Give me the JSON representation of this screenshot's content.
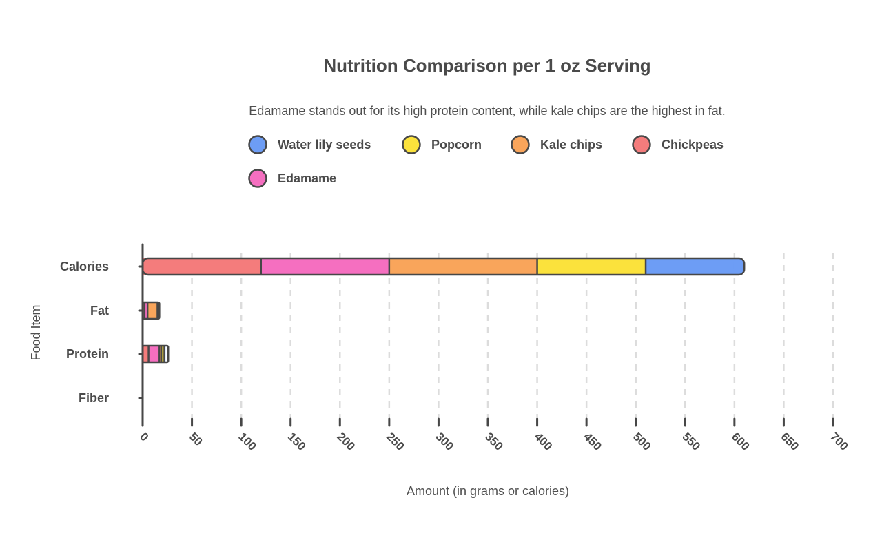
{
  "chart_data": {
    "type": "bar",
    "orientation": "horizontal",
    "stacked": true,
    "title": "Nutrition Comparison per 1 oz Serving",
    "subtitle": "Edamame stands out for its high protein content, while kale chips are the highest in fat.",
    "xlabel": "Amount (in grams or calories)",
    "ylabel": "Food Item",
    "xlim": [
      0,
      700
    ],
    "xticks": [
      0,
      50,
      100,
      150,
      200,
      250,
      300,
      350,
      400,
      450,
      500,
      550,
      600,
      650,
      700
    ],
    "grid": true,
    "legend_position": "top",
    "categories": [
      "Calories",
      "Fat",
      "Protein",
      "Fiber"
    ],
    "series": [
      {
        "name": "Chickpeas",
        "color": "#f47c7c",
        "values": [
          120,
          2,
          6,
          0
        ]
      },
      {
        "name": "Edamame",
        "color": "#f56fc0",
        "values": [
          130,
          3,
          11,
          0
        ]
      },
      {
        "name": "Kale chips",
        "color": "#f9a55b",
        "values": [
          150,
          10,
          2,
          0
        ]
      },
      {
        "name": "Popcorn",
        "color": "#fbe23c",
        "values": [
          110,
          1,
          3,
          0
        ]
      },
      {
        "name": "Water lily seeds",
        "color": "#6d9df5",
        "values": [
          100,
          1,
          4,
          0
        ]
      }
    ],
    "legend_order": [
      "Water lily seeds",
      "Popcorn",
      "Kale chips",
      "Chickpeas",
      "Edamame"
    ]
  }
}
